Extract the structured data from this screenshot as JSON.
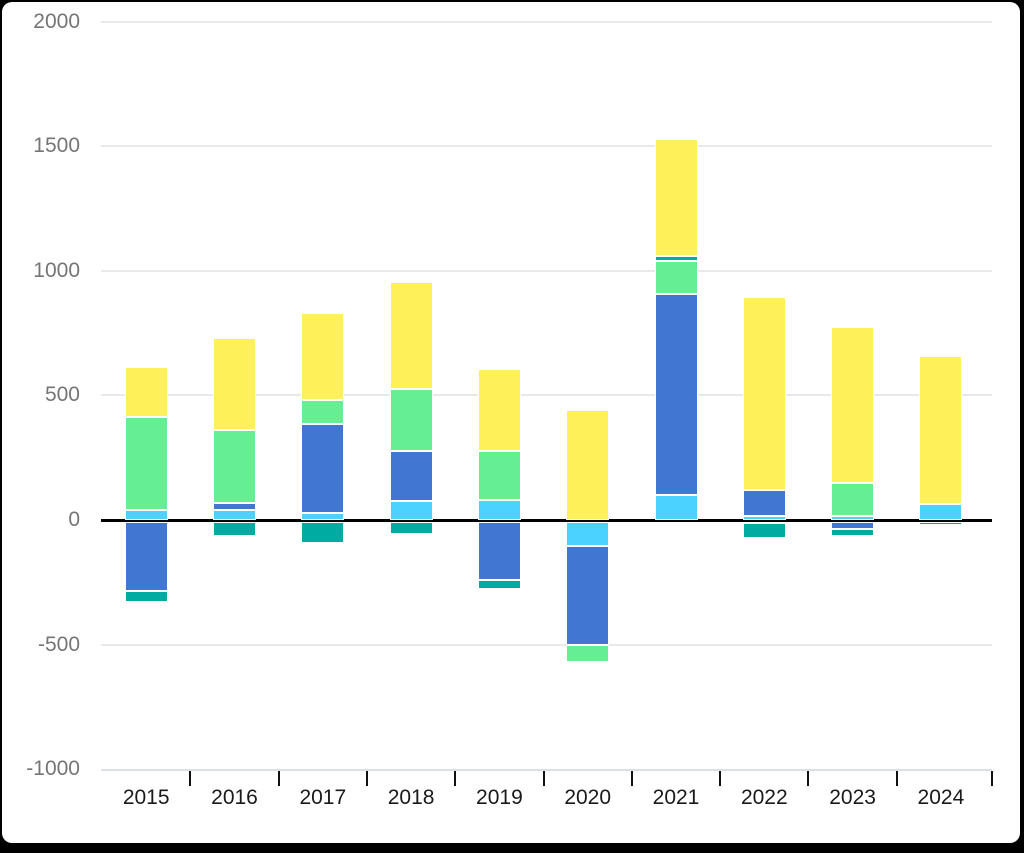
{
  "chart_data": {
    "type": "bar",
    "stacked": true,
    "title": "",
    "xlabel": "",
    "ylabel": "",
    "categories": [
      "2015",
      "2016",
      "2017",
      "2018",
      "2019",
      "2020",
      "2021",
      "2022",
      "2023",
      "2024"
    ],
    "series": [
      {
        "name": "sky-blue",
        "color": "#4CD2FE",
        "values": [
          40,
          40,
          30,
          75,
          80,
          -100,
          100,
          15,
          15,
          65
        ]
      },
      {
        "name": "blue",
        "color": "#4177D2",
        "values": [
          -280,
          30,
          355,
          200,
          -235,
          -395,
          805,
          105,
          -30,
          0
        ]
      },
      {
        "name": "green",
        "color": "#65EF92",
        "values": [
          375,
          290,
          95,
          250,
          195,
          -70,
          135,
          -5,
          135,
          0
        ]
      },
      {
        "name": "teal",
        "color": "#00ABA2",
        "values": [
          -45,
          -60,
          -85,
          -50,
          -35,
          0,
          20,
          -60,
          -30,
          -15
        ]
      },
      {
        "name": "yellow",
        "color": "#FDF059",
        "values": [
          200,
          370,
          350,
          430,
          330,
          440,
          470,
          775,
          625,
          595
        ]
      }
    ],
    "y_ticks": [
      "2000",
      "1500",
      "1000",
      "500",
      "0",
      "-500",
      "-1000"
    ],
    "y_tick_values": [
      2000,
      1500,
      1000,
      500,
      0,
      -500,
      -1000
    ],
    "ylim": [
      -1000,
      2000
    ],
    "grid": true,
    "legend": false
  },
  "style": {
    "y_label_color": "#757575",
    "x_label_color": "#1a1a1a",
    "grid_color": "#E9E9E9",
    "axis_line_color": "#D8E0EA",
    "zero_line_color": "#000000",
    "background": "#ffffff",
    "frame_color": "#000000"
  }
}
